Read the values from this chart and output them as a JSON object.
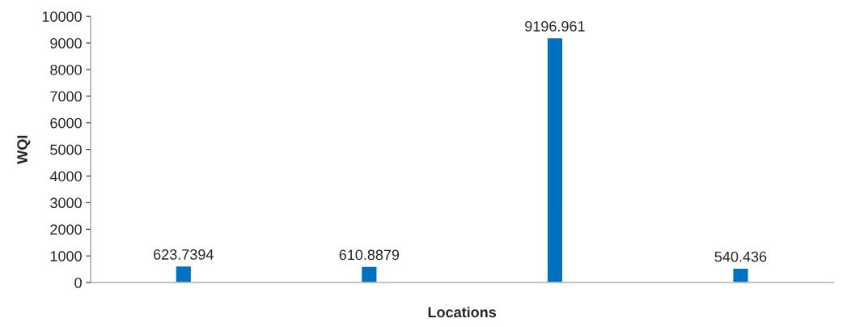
{
  "chart_data": {
    "type": "bar",
    "xlabel": "Locations",
    "ylabel": "WQI",
    "categories": [
      null,
      null,
      null,
      null
    ],
    "values": [
      623.7394,
      610.8879,
      9196.961,
      540.436
    ],
    "color": "#0070c0",
    "ylim": [
      0,
      10000
    ],
    "yticks": [
      0,
      1000,
      2000,
      3000,
      4000,
      5000,
      6000,
      7000,
      8000,
      9000,
      10000
    ],
    "data_labels": true,
    "grid": false,
    "legend": false
  }
}
